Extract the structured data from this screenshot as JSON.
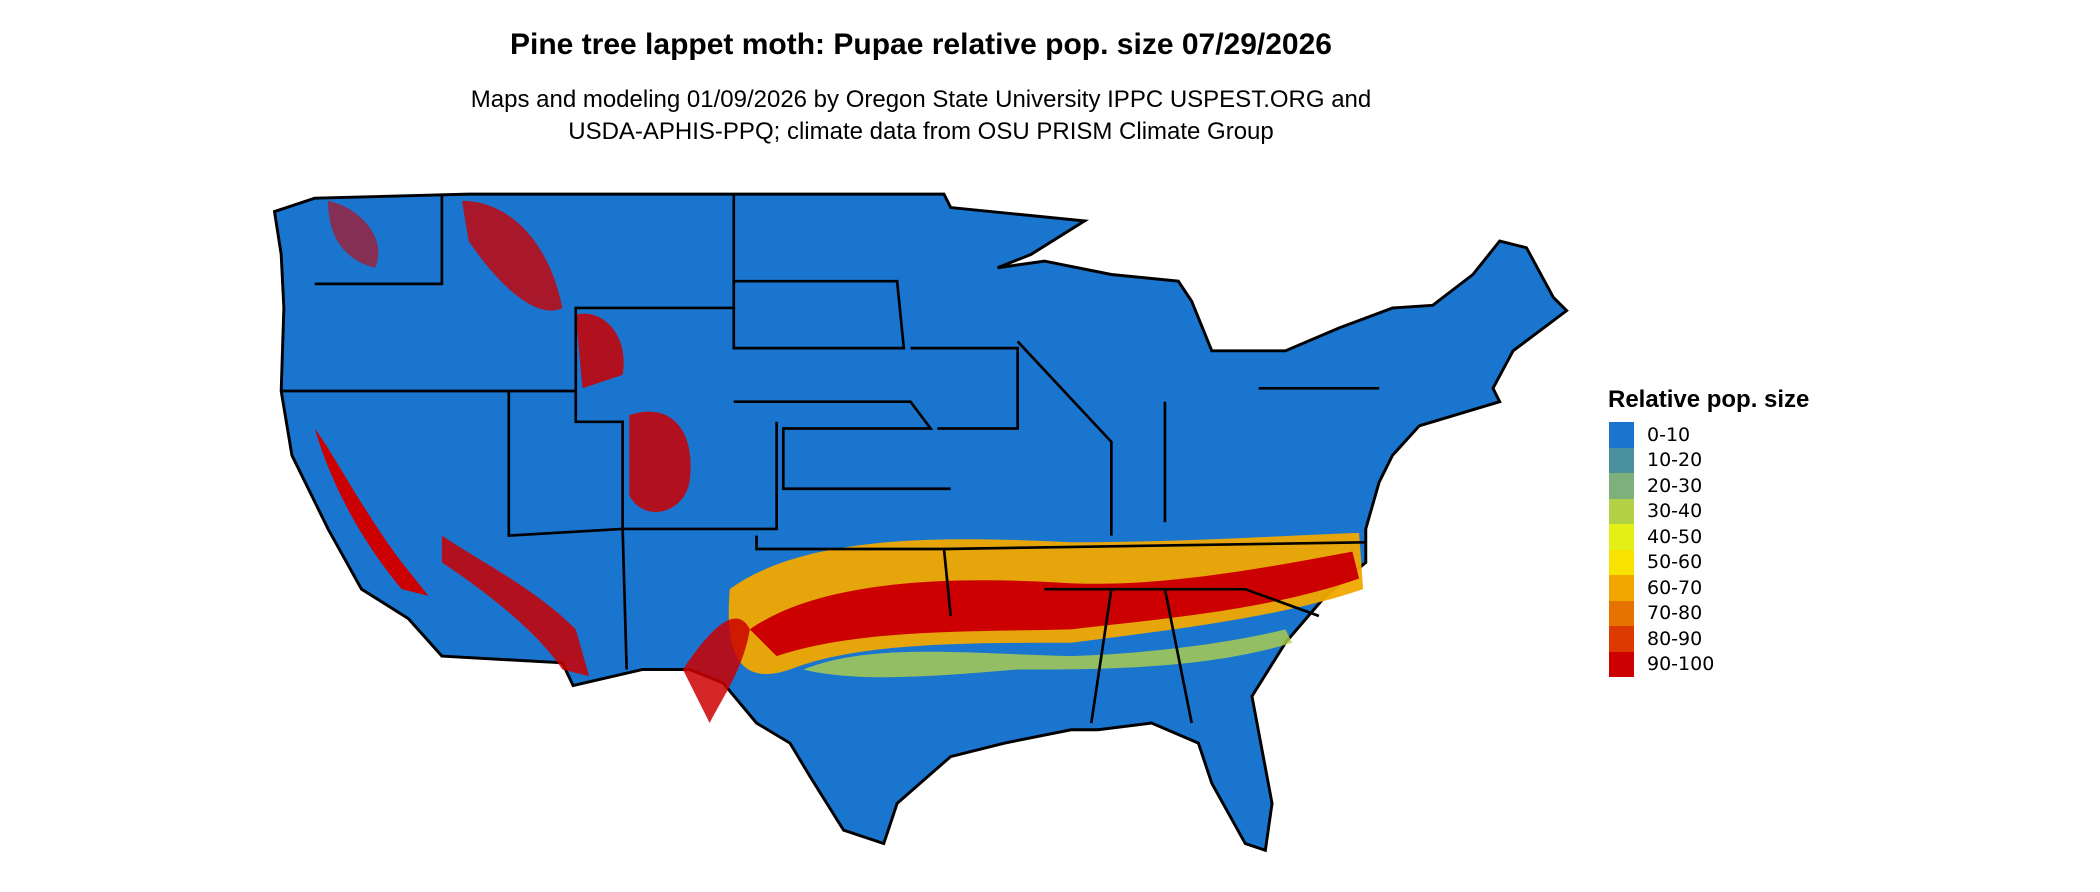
{
  "chart_data": {
    "type": "heatmap",
    "title": "Pine tree lappet moth: Pupae relative pop. size 07/29/2026",
    "subtitle_lines": [
      "Maps and modeling 01/09/2026 by Oregon State University IPPC USPEST.ORG and",
      "USDA-APHIS-PPQ; climate data from OSU PRISM Climate Group"
    ],
    "legend": {
      "title": "Relative pop. size",
      "placement": "right",
      "items": [
        {
          "label": "0-10",
          "color": "#1a75cf"
        },
        {
          "label": "10-20",
          "color": "#4a8f9e"
        },
        {
          "label": "20-30",
          "color": "#7db07a"
        },
        {
          "label": "30-40",
          "color": "#b3d147"
        },
        {
          "label": "40-50",
          "color": "#e3ef17"
        },
        {
          "label": "50-60",
          "color": "#f7e200"
        },
        {
          "label": "60-70",
          "color": "#f0a800"
        },
        {
          "label": "70-80",
          "color": "#e67300"
        },
        {
          "label": "80-90",
          "color": "#dc3a00"
        },
        {
          "label": "90-100",
          "color": "#cc0000"
        }
      ]
    },
    "region": "Contiguous United States, state boundaries"
  }
}
